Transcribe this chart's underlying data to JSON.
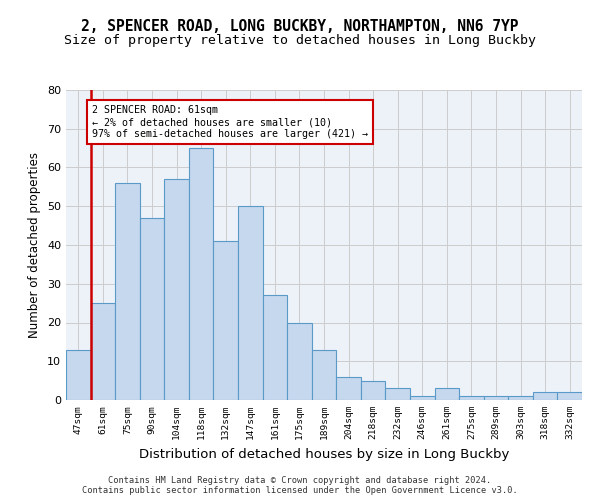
{
  "title1": "2, SPENCER ROAD, LONG BUCKBY, NORTHAMPTON, NN6 7YP",
  "title2": "Size of property relative to detached houses in Long Buckby",
  "xlabel": "Distribution of detached houses by size in Long Buckby",
  "ylabel": "Number of detached properties",
  "bin_labels": [
    "47sqm",
    "61sqm",
    "75sqm",
    "90sqm",
    "104sqm",
    "118sqm",
    "132sqm",
    "147sqm",
    "161sqm",
    "175sqm",
    "189sqm",
    "204sqm",
    "218sqm",
    "232sqm",
    "246sqm",
    "261sqm",
    "275sqm",
    "289sqm",
    "303sqm",
    "318sqm",
    "332sqm"
  ],
  "bar_heights": [
    13,
    25,
    56,
    47,
    57,
    65,
    41,
    50,
    27,
    20,
    13,
    6,
    5,
    3,
    1,
    3,
    1,
    1,
    1,
    2,
    2
  ],
  "highlight_bin_idx": 1,
  "highlight_color": "#cc0000",
  "bar_color": "#c5d8ed",
  "bar_edge_color": "#5a9ac9",
  "annotation_line1": "2 SPENCER ROAD: 61sqm",
  "annotation_line2": "← 2% of detached houses are smaller (10)",
  "annotation_line3": "97% of semi-detached houses are larger (421) →",
  "annotation_box_color": "#ffffff",
  "annotation_box_edge": "#cc0000",
  "ylim": [
    0,
    80
  ],
  "yticks": [
    0,
    10,
    20,
    30,
    40,
    50,
    60,
    70,
    80
  ],
  "grid_color": "#cccccc",
  "bg_color": "#edf2f9",
  "footer": "Contains HM Land Registry data © Crown copyright and database right 2024.\nContains public sector information licensed under the Open Government Licence v3.0.",
  "title1_fontsize": 10.5,
  "title2_fontsize": 9.5,
  "xlabel_fontsize": 9.5,
  "ylabel_fontsize": 8.5
}
